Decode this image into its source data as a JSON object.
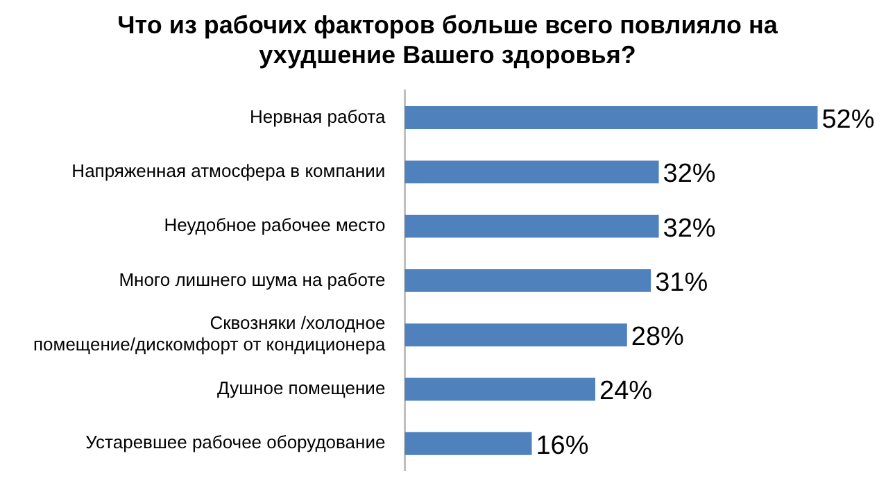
{
  "chart_data": {
    "type": "bar",
    "orientation": "horizontal",
    "title": "Что из рабочих факторов больше всего повлияло на ухудшение Вашего здоровья?",
    "categories": [
      "Нервная работа",
      "Напряженная атмосфера в компании",
      "Неудобное рабочее место",
      "Много лишнего шума на работе",
      "Сквозняки /холодное помещение/дискомфорт от кондиционера",
      "Душное помещение",
      "Устаревшее рабочее оборудование"
    ],
    "values": [
      52,
      32,
      32,
      31,
      28,
      24,
      16
    ],
    "value_labels": [
      "52%",
      "32%",
      "32%",
      "31%",
      "28%",
      "24%",
      "16%"
    ],
    "color": "#4f81bd",
    "grid": false,
    "legend": false
  }
}
